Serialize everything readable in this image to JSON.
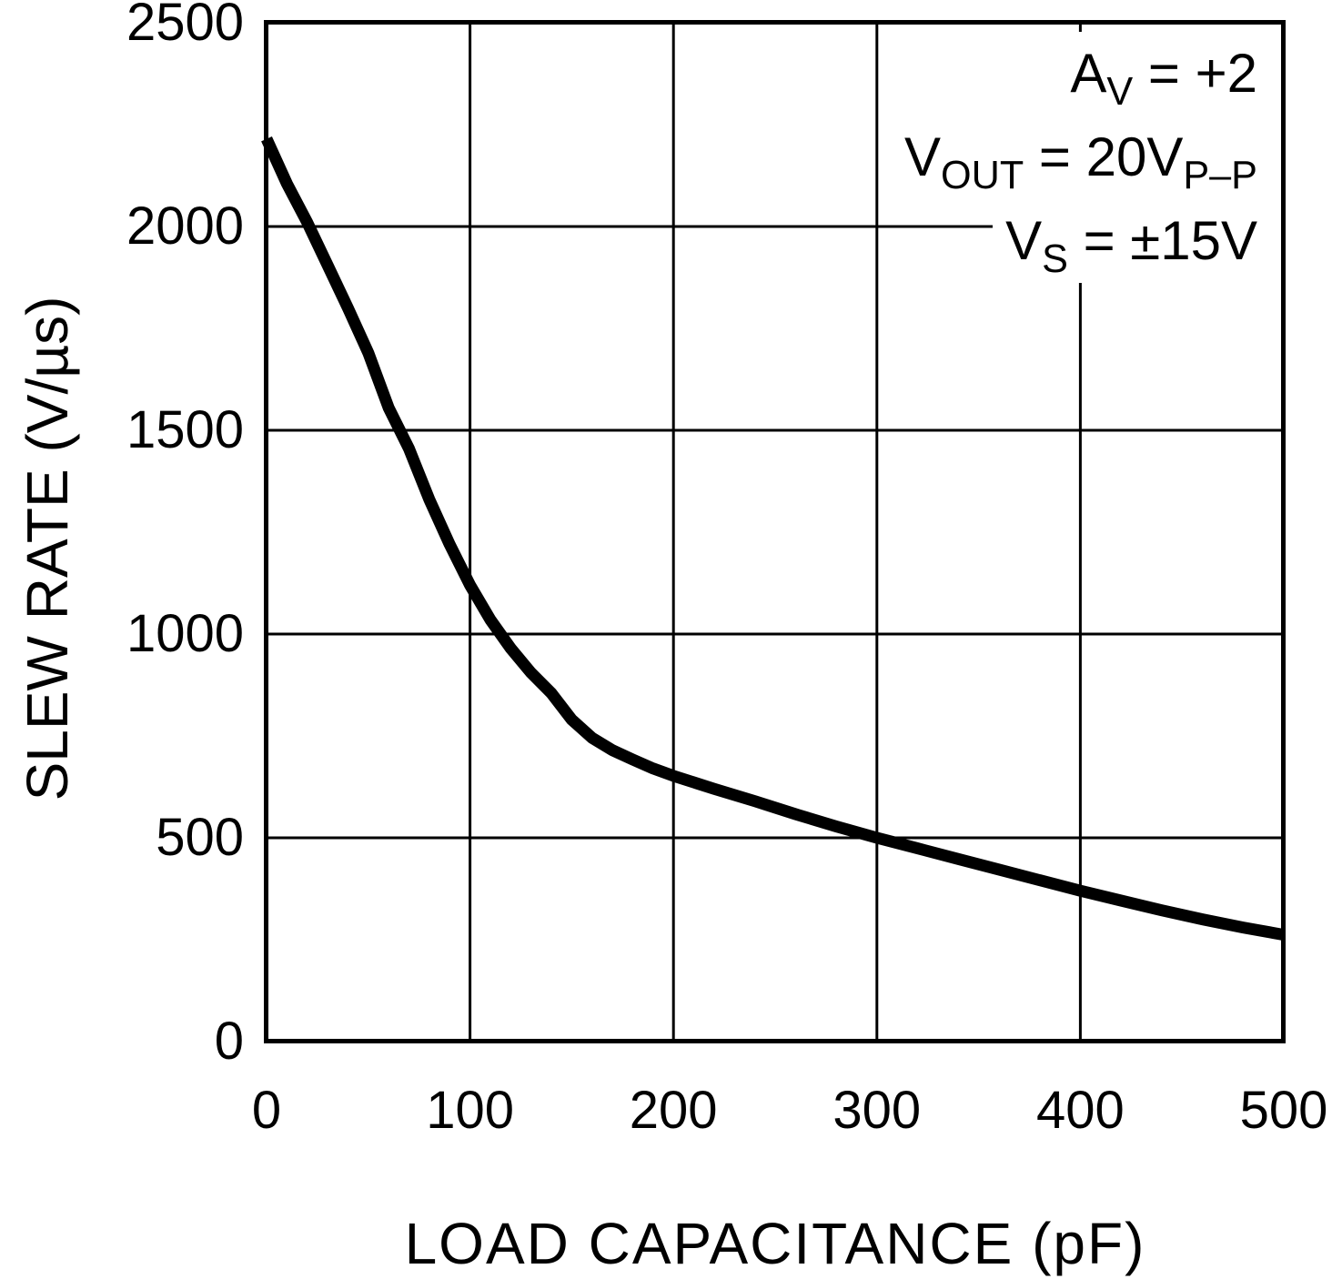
{
  "colors": {
    "curve": "#000000",
    "grid": "#000000",
    "axis": "#000000",
    "background": "#ffffff"
  },
  "chart_data": {
    "type": "line",
    "title": "",
    "xlabel": "LOAD CAPACITANCE (pF)",
    "ylabel": "SLEW RATE (V/µs)",
    "xlim": [
      0,
      500
    ],
    "ylim": [
      0,
      2500
    ],
    "grid": true,
    "legend": "none",
    "xticks": [
      0,
      100,
      200,
      300,
      400,
      500
    ],
    "yticks": [
      0,
      500,
      1000,
      1500,
      2000,
      2500
    ],
    "xtick_labels": [
      "0",
      "100",
      "200",
      "300",
      "400",
      "500"
    ],
    "ytick_labels": [
      "0",
      "500",
      "1000",
      "1500",
      "2000",
      "2500"
    ],
    "series": [
      {
        "name": "slew-rate-vs-load-capacitance",
        "x": [
          0,
          10,
          20,
          30,
          40,
          50,
          60,
          70,
          80,
          90,
          100,
          110,
          120,
          130,
          140,
          150,
          160,
          170,
          180,
          190,
          200,
          220,
          240,
          260,
          280,
          300,
          320,
          340,
          360,
          380,
          400,
          420,
          440,
          460,
          480,
          500
        ],
        "y": [
          2215,
          2105,
          2010,
          1905,
          1800,
          1690,
          1555,
          1455,
          1330,
          1220,
          1120,
          1035,
          965,
          905,
          855,
          790,
          745,
          715,
          692,
          670,
          652,
          620,
          590,
          558,
          528,
          500,
          474,
          448,
          422,
          396,
          370,
          346,
          322,
          300,
          280,
          262
        ]
      }
    ],
    "annotations": {
      "line1": {
        "main": "A",
        "sub": "V",
        "rest": " = +2",
        "plain_text": "AV = +2"
      },
      "line2": {
        "main": "V",
        "sub": "OUT",
        "rest": " = 20V",
        "sub2": "P–P",
        "plain_text": "VOUT = 20VP–P"
      },
      "line3": {
        "main": "V",
        "sub": "S",
        "rest": " = ±15V",
        "plain_text": "VS = ±15V"
      }
    }
  }
}
